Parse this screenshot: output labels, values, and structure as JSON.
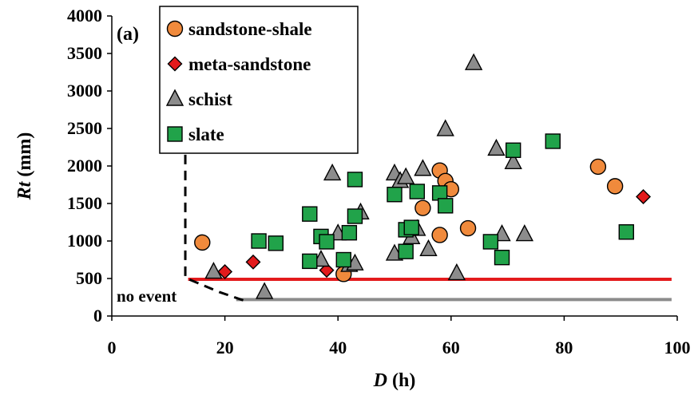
{
  "chart_data": {
    "type": "scatter",
    "panel_label": "(a)",
    "xlabel_italic": "D",
    "xlabel_unit": " (h)",
    "ylabel_italic": "Rt",
    "ylabel_unit": " (mm)",
    "xlim": [
      0,
      100
    ],
    "ylim": [
      0,
      4000
    ],
    "xticks": [
      0,
      20,
      40,
      60,
      80,
      100
    ],
    "yticks": [
      0,
      500,
      1000,
      1500,
      2000,
      2500,
      3000,
      3500,
      4000
    ],
    "grid": false,
    "legend_position": "top-left",
    "annotation": "no event",
    "series": [
      {
        "name": "sandstone-shale",
        "marker": "circle",
        "color": "#f08a3c",
        "points": [
          [
            16,
            980
          ],
          [
            41,
            560
          ],
          [
            55,
            1440
          ],
          [
            58,
            1940
          ],
          [
            59,
            1800
          ],
          [
            58,
            1080
          ],
          [
            60,
            1690
          ],
          [
            63,
            1170
          ],
          [
            86,
            1990
          ],
          [
            89,
            1730
          ]
        ]
      },
      {
        "name": "meta-sandstone",
        "marker": "diamond",
        "color": "#e31a1c",
        "points": [
          [
            20,
            590
          ],
          [
            25,
            720
          ],
          [
            38,
            610
          ],
          [
            94,
            1590
          ]
        ]
      },
      {
        "name": "schist",
        "marker": "triangle",
        "color": "#8c8c8c",
        "points": [
          [
            18,
            590
          ],
          [
            27,
            320
          ],
          [
            37,
            750
          ],
          [
            39,
            1900
          ],
          [
            40,
            1100
          ],
          [
            42,
            680
          ],
          [
            43,
            700
          ],
          [
            44,
            1380
          ],
          [
            50,
            1900
          ],
          [
            50,
            830
          ],
          [
            51,
            1800
          ],
          [
            52,
            1850
          ],
          [
            53,
            1050
          ],
          [
            54,
            1160
          ],
          [
            55,
            1960
          ],
          [
            56,
            890
          ],
          [
            59,
            2490
          ],
          [
            61,
            570
          ],
          [
            64,
            3370
          ],
          [
            68,
            2230
          ],
          [
            69,
            1090
          ],
          [
            71,
            2050
          ],
          [
            73,
            1090
          ]
        ]
      },
      {
        "name": "slate",
        "marker": "square",
        "color": "#21a34a",
        "points": [
          [
            26,
            1000
          ],
          [
            29,
            970
          ],
          [
            35,
            1360
          ],
          [
            35,
            730
          ],
          [
            37,
            1060
          ],
          [
            38,
            990
          ],
          [
            41,
            750
          ],
          [
            42,
            1110
          ],
          [
            43,
            1330
          ],
          [
            43,
            1820
          ],
          [
            50,
            1620
          ],
          [
            52,
            860
          ],
          [
            52,
            1150
          ],
          [
            53,
            1180
          ],
          [
            54,
            1660
          ],
          [
            58,
            1640
          ],
          [
            59,
            1470
          ],
          [
            67,
            990
          ],
          [
            69,
            780
          ],
          [
            71,
            2210
          ],
          [
            78,
            2330
          ],
          [
            91,
            1120
          ]
        ]
      }
    ],
    "reference_lines": [
      {
        "name": "red threshold",
        "color": "#e31a1c",
        "points": [
          [
            13.5,
            490
          ],
          [
            99,
            490
          ]
        ]
      },
      {
        "name": "gray threshold",
        "color": "#8c8c8c",
        "points": [
          [
            22,
            220
          ],
          [
            99,
            220
          ]
        ]
      },
      {
        "name": "dashed boundary",
        "color": "#000000",
        "dashed": true,
        "points": [
          [
            13,
            2150
          ],
          [
            13,
            510
          ],
          [
            19,
            320
          ],
          [
            24,
            190
          ]
        ]
      }
    ]
  }
}
